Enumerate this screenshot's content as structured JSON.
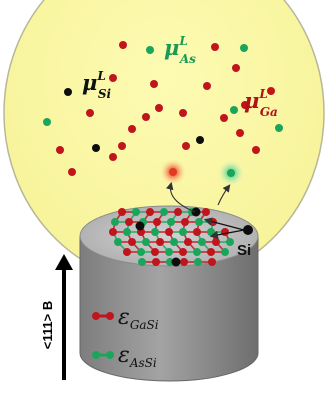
{
  "labels": {
    "mu_si": {
      "base": "μ",
      "sup": "L",
      "sub": "Si"
    },
    "mu_as": {
      "base": "μ",
      "sup": "L",
      "sub": "As"
    },
    "mu_ga": {
      "base": "μ",
      "sup": "L",
      "sub": "Ga"
    },
    "si": "Si",
    "axis": "<111> B",
    "eps_gasi": {
      "base": "ε",
      "sub": "GaSi"
    },
    "eps_assi": {
      "base": "ε",
      "sub": "AsSi"
    }
  },
  "colors": {
    "liquid_fill": "#fbf9a4",
    "liquid_stroke": "#b7b89a",
    "ga_atom": "#c0151c",
    "as_atom": "#1aa65a",
    "si_atom": "#0d0d0d",
    "mu_si_text": "#111111",
    "mu_as_text": "#1a9a55",
    "mu_ga_text": "#b01218",
    "crystal_top": "#c6c6c6",
    "crystal_side": "#8f8f8f"
  },
  "icons": {
    "red_glow": "red-glow-atom-icon",
    "green_glow": "green-glow-atom-icon",
    "legend_red": "red-bond-swatch-icon",
    "legend_green": "green-bond-swatch-icon",
    "growth_arrow": "up-arrow-icon"
  }
}
